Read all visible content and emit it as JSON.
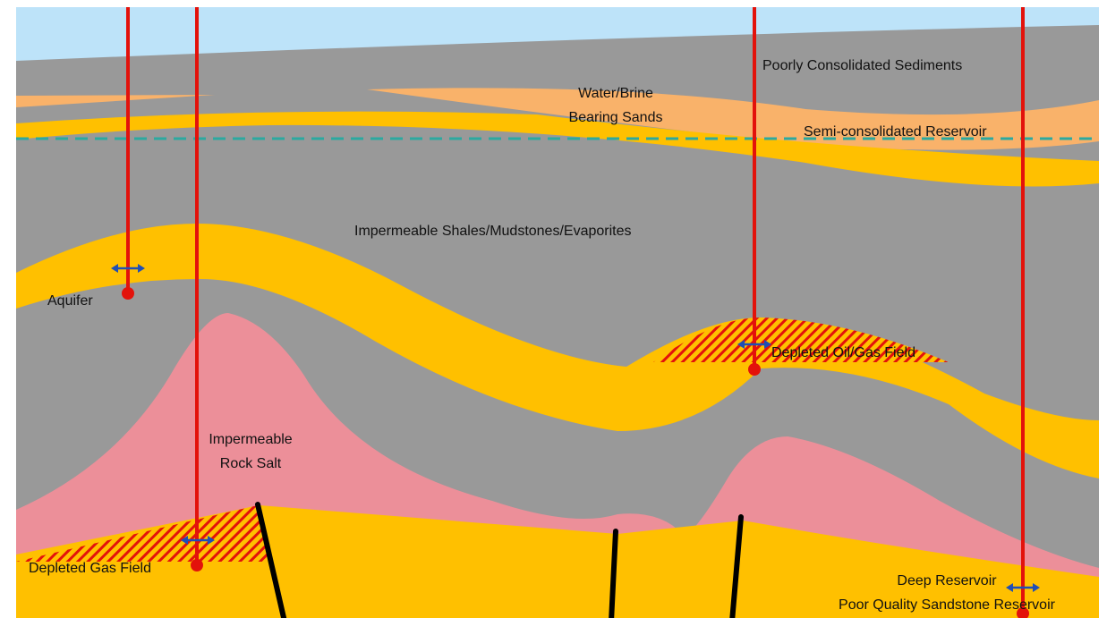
{
  "labels": {
    "poorly_consolidated": "Poorly Consolidated Sediments",
    "water_brine": [
      "Water/Brine",
      "Bearing Sands"
    ],
    "semi_consolidated": "Semi-consolidated Reservoir",
    "shales": "Impermeable Shales/Mudstones/Evaporites",
    "aquifer": "Aquifer",
    "depleted_oil_gas": "Depleted Oil/Gas Field",
    "rock_salt": [
      "Impermeable",
      "Rock Salt"
    ],
    "depleted_gas": "Depleted Gas Field",
    "deep_reservoir": [
      "Deep Reservoir",
      "Poor Quality Sandstone Reservoir"
    ]
  }
}
